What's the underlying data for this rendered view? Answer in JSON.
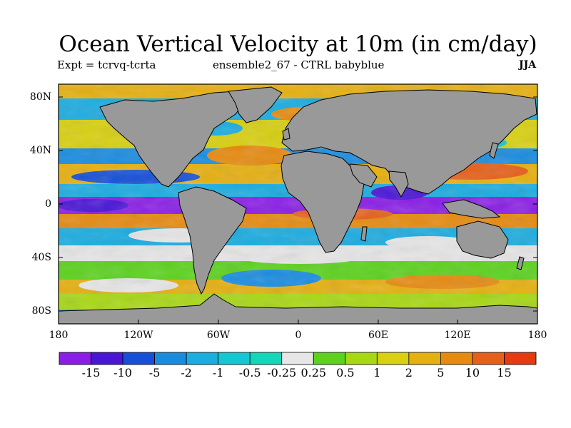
{
  "title": "Ocean Vertical Velocity at 10m (in cm/day)",
  "subtitle_left": "Expt = tcrvq-tcrta",
  "subtitle_center": "ensemble2_67 - CTRL babyblue",
  "season": "JJA",
  "lat_labels": [
    "80N",
    "40N",
    "0",
    "40S",
    "80S"
  ],
  "lon_labels": [
    "180",
    "120W",
    "60W",
    "0",
    "60E",
    "120E",
    "180"
  ],
  "colorbar": {
    "labels": [
      "-15",
      "-10",
      "-5",
      "-2",
      "-1",
      "-0.5",
      "-0.25",
      "0.25",
      "0.5",
      "1",
      "2",
      "5",
      "10",
      "15"
    ],
    "colors": [
      "#8a1ee6",
      "#4a16d6",
      "#1650d8",
      "#1a8ce0",
      "#1bace0",
      "#13c8d2",
      "#14d6b8",
      "#e6e6e6",
      "#5cd21e",
      "#a8d814",
      "#d8d010",
      "#e6b010",
      "#e68a10",
      "#e6601a",
      "#e63a10"
    ]
  },
  "colors": {
    "land": "#999999",
    "frame": "#000000"
  }
}
